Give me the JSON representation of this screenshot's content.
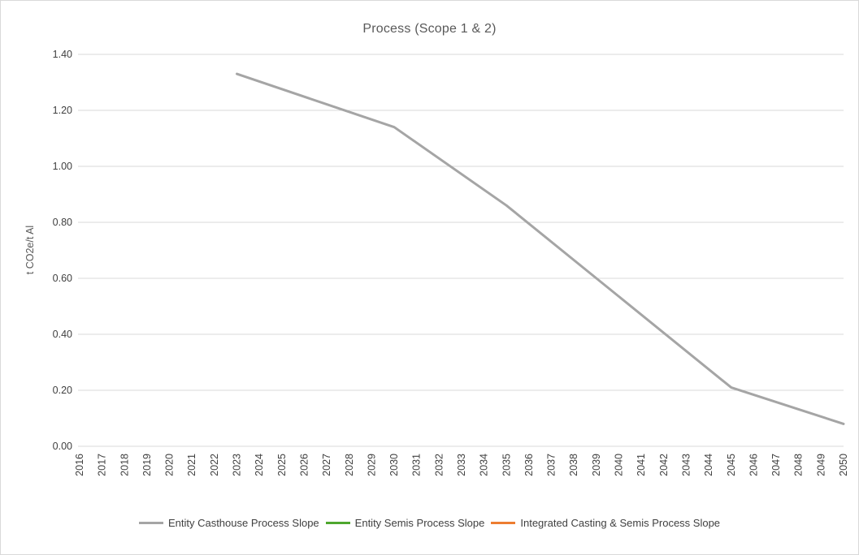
{
  "chart_data": {
    "type": "line",
    "title": "Process (Scope 1 & 2)",
    "xlabel": "",
    "ylabel": "t CO2e/t Al",
    "x_categories": [
      "2016",
      "2017",
      "2018",
      "2019",
      "2020",
      "2021",
      "2022",
      "2023",
      "2024",
      "2025",
      "2026",
      "2027",
      "2028",
      "2029",
      "2030",
      "2031",
      "2032",
      "2033",
      "2034",
      "2035",
      "2036",
      "2037",
      "2038",
      "2039",
      "2040",
      "2041",
      "2042",
      "2043",
      "2044",
      "2045",
      "2046",
      "2047",
      "2048",
      "2049",
      "2050"
    ],
    "ylim": [
      0.0,
      1.4
    ],
    "ytick_step": 0.2,
    "ytick_labels": [
      "0.00",
      "0.20",
      "0.40",
      "0.60",
      "0.80",
      "1.00",
      "1.20",
      "1.40"
    ],
    "grid": true,
    "legend_position": "bottom",
    "colors": {
      "gridline": "#d9d9d9",
      "tick_label": "#404040",
      "title": "#595959",
      "axis_label": "#595959",
      "legend_text": "#404040"
    },
    "series": [
      {
        "name": "Entity Casthouse Process Slope",
        "color": "#a5a5a5",
        "points": [
          [
            2023,
            1.33
          ],
          [
            2030,
            1.14
          ],
          [
            2035,
            0.86
          ],
          [
            2045,
            0.21
          ],
          [
            2050,
            0.08
          ]
        ]
      },
      {
        "name": "Entity Semis Process Slope",
        "color": "#4ea72e",
        "points": []
      },
      {
        "name": "Integrated Casting & Semis Process Slope",
        "color": "#ed7d31",
        "points": []
      }
    ]
  }
}
